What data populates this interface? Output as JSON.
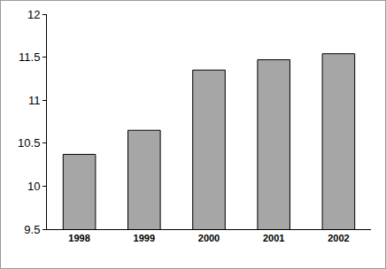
{
  "chart_data": {
    "type": "bar",
    "categories": [
      "1998",
      "1999",
      "2000",
      "2001",
      "2002"
    ],
    "values": [
      10.37,
      10.65,
      11.35,
      11.47,
      11.54
    ],
    "color": "#a6a6a6",
    "ylim": [
      9.5,
      12
    ],
    "yticks": [
      9.5,
      10,
      10.5,
      11,
      11.5,
      12
    ],
    "grid": false
  }
}
